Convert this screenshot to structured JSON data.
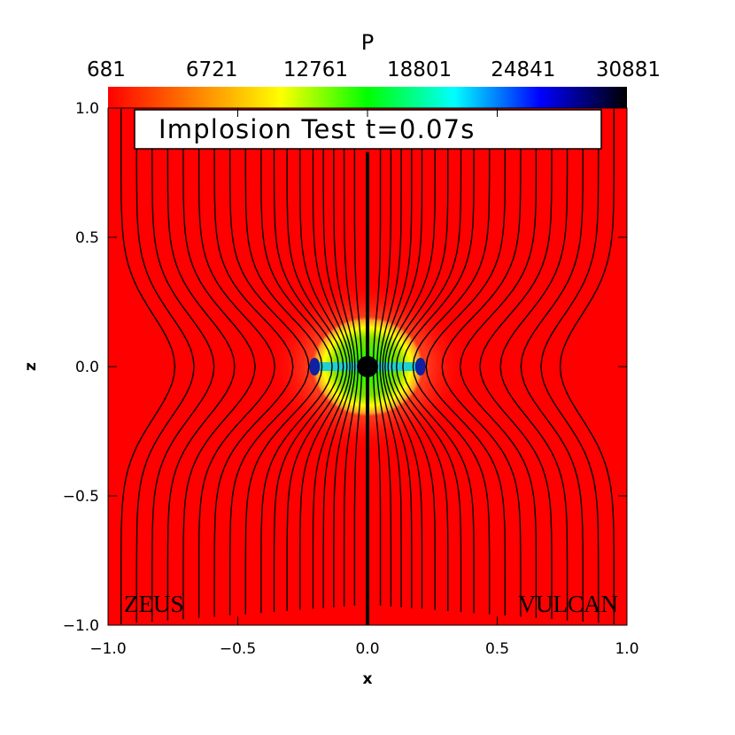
{
  "chart_data": {
    "type": "heatmap",
    "title": "Implosion Test t=0.07s",
    "colorbar": {
      "label": "P",
      "ticks": [
        "681",
        "6721",
        "12761",
        "18801",
        "24841",
        "30881"
      ],
      "range": [
        681,
        30881
      ],
      "colors": [
        "#ff0000",
        "#ff8000",
        "#ffff00",
        "#00ff00",
        "#00ffff",
        "#0000ff",
        "#000000"
      ]
    },
    "xlabel": "x",
    "ylabel": "z",
    "xlim": [
      -1.0,
      1.0
    ],
    "ylim": [
      -1.0,
      1.0
    ],
    "xticks": [
      "−1.0",
      "−0.5",
      "0.0",
      "0.5",
      "1.0"
    ],
    "yticks": [
      "1.0",
      "0.5",
      "0.0",
      "−0.5",
      "−1.0"
    ],
    "xtick_values": [
      -1.0,
      -0.5,
      0.0,
      0.5,
      1.0
    ],
    "ytick_values": [
      1.0,
      0.5,
      0.0,
      -0.5,
      -1.0
    ],
    "annotations": {
      "left": "ZEUS",
      "right": "VULCAN"
    },
    "background_value": 681,
    "core": {
      "center": [
        0.0,
        0.0
      ],
      "radius_x": 0.2,
      "radius_z": 0.18,
      "peak_value": 30881
    },
    "field_line_offsets": [
      0.05,
      0.09,
      0.13,
      0.17,
      0.21,
      0.26,
      0.31,
      0.36,
      0.41,
      0.47,
      0.53,
      0.59,
      0.65,
      0.71,
      0.77,
      0.83,
      0.89,
      0.95
    ]
  }
}
